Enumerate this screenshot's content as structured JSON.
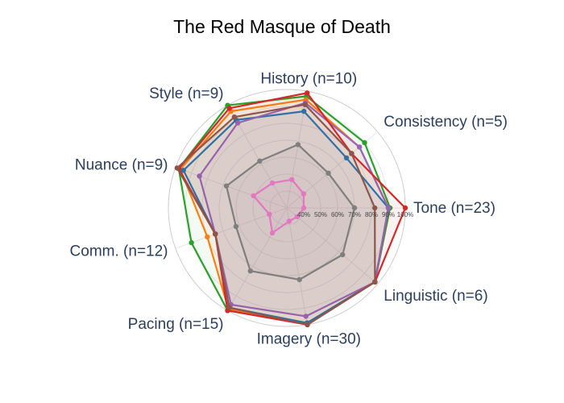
{
  "chart_data": {
    "type": "radar",
    "title": "The Red Masque of Death",
    "axes": [
      "Tone (n=23)",
      "Consistency (n=5)",
      "History (n=10)",
      "Style (n=9)",
      "Nuance (n=9)",
      "Comm. (n=12)",
      "Pacing (n=15)",
      "Imagery (n=30)",
      "Linguistic (n=6)"
    ],
    "radial_range": [
      30,
      100
    ],
    "radial_ticks": [
      "40%",
      "50%",
      "60%",
      "70%",
      "80%",
      "90%",
      "100%"
    ],
    "radial_tick_values": [
      40,
      50,
      60,
      70,
      80,
      90,
      100
    ],
    "grid": true,
    "series": [
      {
        "color": "#2ca02c",
        "values": [
          91,
          90,
          97,
          100,
          98,
          90,
          100,
          99,
          98
        ]
      },
      {
        "color": "#ff7f0e",
        "values": [
          90,
          86,
          95,
          96,
          97,
          80,
          99,
          99,
          98
        ]
      },
      {
        "color": "#1f77b4",
        "values": [
          90,
          76,
          88,
          90,
          95,
          75,
          98,
          99,
          98
        ]
      },
      {
        "color": "#9467bd",
        "values": [
          90,
          86,
          93,
          88,
          85,
          75,
          96,
          95,
          98
        ]
      },
      {
        "color": "#d62728",
        "values": [
          100,
          80,
          99,
          98,
          98,
          75,
          100,
          100,
          98
        ]
      },
      {
        "color": "#8c564b",
        "values": [
          82,
          80,
          92,
          92,
          99,
          75,
          98,
          100,
          98
        ]
      },
      {
        "color": "#7f7f7f",
        "values": [
          70,
          62,
          68,
          62,
          68,
          62,
          73,
          73,
          73
        ]
      },
      {
        "color": "#e377c2",
        "values": [
          40,
          43,
          47,
          47,
          51,
          41,
          47,
          38,
          38
        ]
      }
    ]
  }
}
